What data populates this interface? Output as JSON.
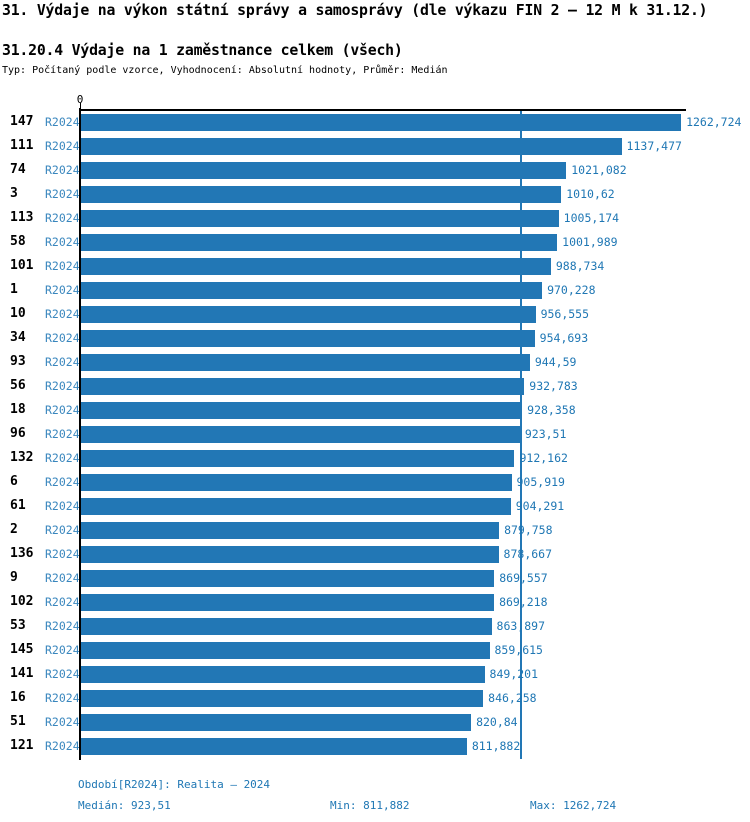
{
  "header": {
    "title": "31. Výdaje na výkon státní správy a samosprávy (dle výkazu FIN 2 – 12 M k 31.12.)",
    "subtitle": "31.20.4 Výdaje na 1 zaměstnance celkem (všech)",
    "meta": "Typ: Počítaný podle vzorce, Vyhodnocení: Absolutní hodnoty, Průměr: Medián"
  },
  "colors": {
    "bar": "#2277b5",
    "series_label": "#3a87be",
    "value_label": "#1f77b4",
    "footer_text": "#1f77b4",
    "median_line": "#2277b5",
    "axis": "#000000"
  },
  "chart_data": {
    "type": "bar",
    "orientation": "horizontal",
    "title": "31.20.4 Výdaje na 1 zaměstnance celkem (všech)",
    "axis_zero_tick": "0",
    "xlim": [
      0,
      1271
    ],
    "grid": false,
    "series_name": "R2024",
    "median_value": 923.51,
    "categories": [
      "147",
      "111",
      "74",
      "3",
      "113",
      "58",
      "101",
      "1",
      "10",
      "34",
      "93",
      "56",
      "18",
      "96",
      "132",
      "6",
      "61",
      "2",
      "136",
      "9",
      "102",
      "53",
      "145",
      "141",
      "16",
      "51",
      "121"
    ],
    "series_labels": [
      "R2024",
      "R2024",
      "R2024",
      "R2024",
      "R2024",
      "R2024",
      "R2024",
      "R2024",
      "R2024",
      "R2024",
      "R2024",
      "R2024",
      "R2024",
      "R2024",
      "R2024",
      "R2024",
      "R2024",
      "R2024",
      "R2024",
      "R2024",
      "R2024",
      "R2024",
      "R2024",
      "R2024",
      "R2024",
      "R2024",
      "R2024"
    ],
    "values": [
      1262.724,
      1137.477,
      1021.082,
      1010.62,
      1005.174,
      1001.989,
      988.734,
      970.228,
      956.555,
      954.693,
      944.59,
      932.783,
      928.358,
      923.51,
      912.162,
      905.919,
      904.291,
      879.758,
      878.667,
      869.557,
      869.218,
      863.897,
      859.615,
      849.201,
      846.258,
      820.84,
      811.882
    ],
    "value_labels": [
      "1262,724",
      "1137,477",
      "1021,082",
      "1010,62",
      "1005,174",
      "1001,989",
      "988,734",
      "970,228",
      "956,555",
      "954,693",
      "944,59",
      "932,783",
      "928,358",
      "923,51",
      "912,162",
      "905,919",
      "904,291",
      "879,758",
      "878,667",
      "869,557",
      "869,218",
      "863,897",
      "859,615",
      "849,201",
      "846,258",
      "820,84",
      "811,882"
    ]
  },
  "footer": {
    "period": "Období[R2024]: Realita – 2024",
    "median": "Medián: 923,51",
    "min": "Min: 811,882",
    "max": "Max: 1262,724"
  }
}
